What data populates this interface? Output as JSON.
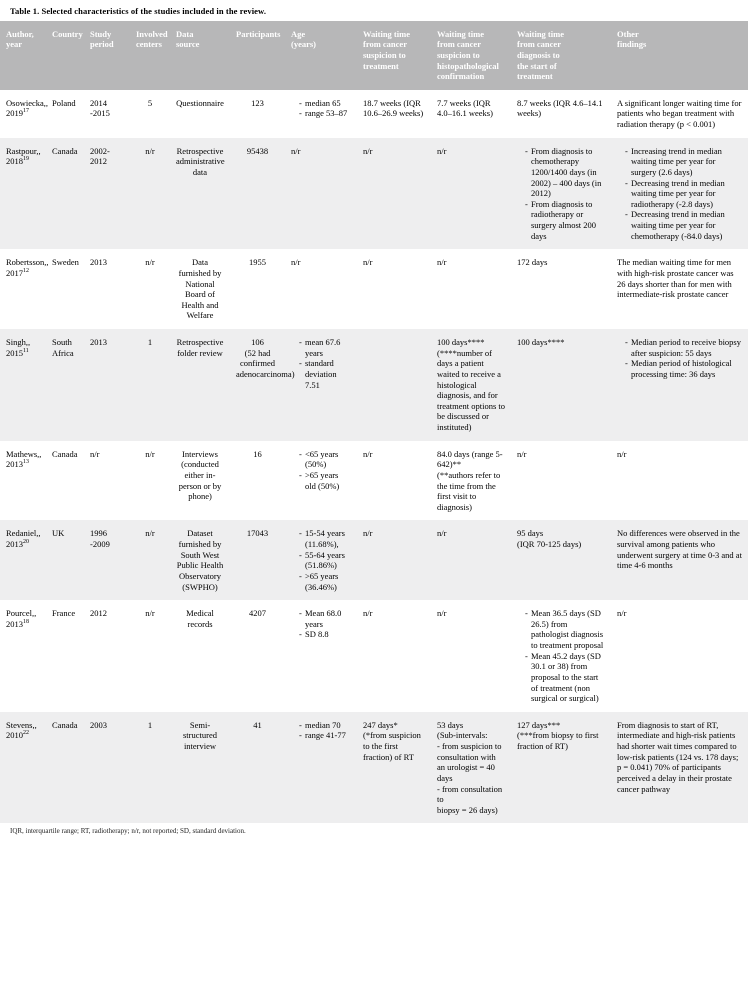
{
  "caption": "Table 1. Selected characteristics of the studies included in the review.",
  "footnote": "IQR, interquartile range; RT, radiotherapy; n/r, not reported; SD, standard deviation.",
  "columns": [
    "Author,\nyear",
    "Country",
    "Study\nperiod",
    "Involved\ncenters",
    "Data\nsource",
    "Participants",
    "Age\n(years)",
    "Waiting time\nfrom cancer\nsuspicion to\ntreatment",
    "Waiting  time\nfrom cancer\nsuspicion to\nhistopathological\nconfirmation",
    "Waiting time\nfrom cancer\ndiagnosis to\nthe start of\ntreatment",
    "Other\nfindings"
  ],
  "rows": [
    {
      "author": "Osowiecka,\n2019",
      "ref": "17",
      "country": "Poland",
      "period": "2014 -2015",
      "centers": "5",
      "source": "Questionnaire",
      "participants": "123",
      "age_list": [
        "median 65",
        "range 53–87"
      ],
      "wt1": "18.7 weeks (IQR 10.6–26.9 weeks)",
      "wt2": "7.7 weeks (IQR 4.0–16.1 weeks)",
      "wt3": "8.7 weeks (IQR 4.6–14.1 weeks)",
      "other": "A significant  longer waiting time for patients who began treatment with radiation therapy (p < 0.001)"
    },
    {
      "author": "Rastpour,\n2018",
      "ref": "19",
      "country": "Canada",
      "period": "2002-2012",
      "centers": "n/r",
      "source": "Retrospective administrative data",
      "participants": "95438",
      "age": "n/r",
      "wt1": "n/r",
      "wt2": "n/r",
      "wt3_list": [
        "From diagnosis to chemotherapy 1200/1400 days (in 2002) – 400 days (in 2012)",
        "From diagnosis to radiotherapy or surgery almost 200 days"
      ],
      "other_list": [
        "Increasing trend in median waiting time per year for surgery (2.6 days)",
        "Decreasing trend in median waiting time per year for radiotherapy (-2.8 days)",
        "Decreasing trend in median waiting time per year for chemotherapy (-84.0 days)"
      ]
    },
    {
      "author": "Robertsson,\n2017",
      "ref": "12",
      "country": "Sweden",
      "period": "2013",
      "centers": "n/r",
      "source": "Data furnished by National Board of Health and Welfare",
      "participants": "1955",
      "age": "n/r",
      "wt1": "n/r",
      "wt2": "n/r",
      "wt3": "172 days",
      "other": "The median waiting time for men with high-risk prostate cancer was 26 days shorter than  for men with intermediate-risk prostate cancer"
    },
    {
      "author": "Singh,\n2015",
      "ref": "11",
      "country": "South Africa",
      "period": "2013",
      "centers": "1",
      "source": "Retrospective folder review",
      "participants": "106\n(52 had confirmed adenocarcinoma)",
      "age_list": [
        "mean 67.6 years",
        "standard deviation 7.51"
      ],
      "wt1": "",
      "wt2": "100 days****\n(****number of days a patient waited to receive a histological diagnosis, and for treatment options to be discussed or instituted)",
      "wt3": "100 days****",
      "other_list": [
        "Median period to  receive biopsy after suspicion: 55 days",
        "Median period of histological processing time: 36 days"
      ]
    },
    {
      "author": "Mathews,\n2013",
      "ref": "13",
      "country": "Canada",
      "period": "n/r",
      "centers": "n/r",
      "source": "Interviews (conducted either in-person or by phone)",
      "participants": "16",
      "age_list": [
        "<65 years (50%)",
        ">65 years old (50%)"
      ],
      "wt1": "n/r",
      "wt2": "84.0 days (range 5-642)**\n(**authors refer to the time from the first visit to diagnosis)",
      "wt3": "n/r",
      "other": "n/r"
    },
    {
      "author": "Redaniel,\n2013",
      "ref": "20",
      "country": "UK",
      "period": "1996 -2009",
      "centers": "n/r",
      "source": "Dataset furnished by South West Public Health Observatory (SWPHO)",
      "participants": "17043",
      "age_list": [
        "15-54 years (11.68%),",
        "55-64 years (51.86%)",
        ">65 years (36.46%)"
      ],
      "wt1": "n/r",
      "wt2": "n/r",
      "wt3": "95 days\n(IQR 70-125 days)",
      "other": "No differences were observed in the survival among patients who underwent surgery at time 0-3 and at time 4-6 months"
    },
    {
      "author": "Pourcel,\n2013",
      "ref": "18",
      "country": "France",
      "period": "2012",
      "centers": "n/r",
      "source": "Medical records",
      "participants": "4207",
      "age_list": [
        "Mean 68.0 years",
        "SD 8.8"
      ],
      "wt1": "n/r",
      "wt2": "n/r",
      "wt3_list": [
        "Mean 36.5 days (SD 26.5) from pathologist diagnosis to treatment proposal",
        "Mean 45.2 days (SD 30.1 or 38) from proposal to the start of treatment (non surgical or surgical)"
      ],
      "other": "n/r"
    },
    {
      "author": "Stevens,\n2010",
      "ref": "22",
      "country": "Canada",
      "period": "2003",
      "centers": "1",
      "source": "Semi-structured interview",
      "participants": "41",
      "age_list": [
        "median 70",
        "range 41-77"
      ],
      "wt1": "247 days*\n(*from suspicion to the first fraction) of RT",
      "wt2": "53 days\n(Sub-intervals:\n - from suspicion to\n    consultation with\n    an urologist = 40 days\n - from consultation to\n    biopsy = 26 days)",
      "wt3": "127 days***\n(***from biopsy to first fraction of RT)",
      "other": "From diagnosis to start of RT, intermediate and high-risk patients had shorter wait times compared to low-risk patients (124 vs. 178 days; p = 0.041) 70% of participants perceived a delay in their prostate cancer pathway"
    }
  ]
}
